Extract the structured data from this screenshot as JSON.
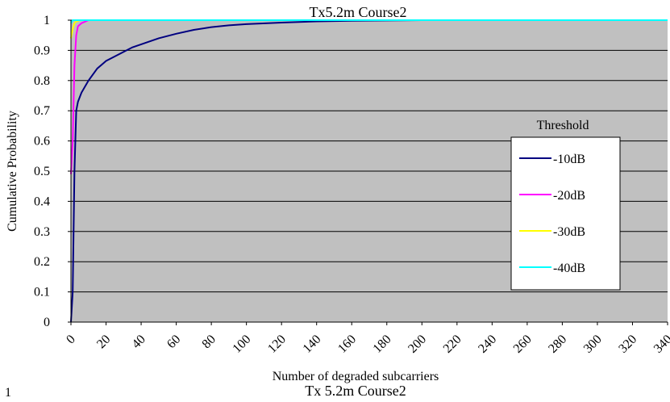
{
  "chart_data": {
    "type": "line",
    "title": "Tx5.2m Course2",
    "xlabel": "Number of degraded subcarriers",
    "ylabel": "Cumulative Probability",
    "xlim": [
      0,
      340
    ],
    "ylim": [
      0,
      1
    ],
    "x_ticks": [
      "0",
      "20",
      "40",
      "60",
      "80",
      "100",
      "120",
      "140",
      "160",
      "180",
      "200",
      "220",
      "240",
      "260",
      "280",
      "300",
      "320",
      "340"
    ],
    "y_ticks": [
      "0",
      "0.1",
      "0.2",
      "0.3",
      "0.4",
      "0.5",
      "0.6",
      "0.7",
      "0.8",
      "0.9",
      "1"
    ],
    "grid": "horizontal",
    "plot_background": "#c0c0c0",
    "legend": {
      "title": "Threshold",
      "placement": "right"
    },
    "series": [
      {
        "name": "-10dB",
        "color": "#000080",
        "x": [
          0,
          1,
          2,
          3,
          4,
          6,
          8,
          10,
          15,
          20,
          25,
          30,
          35,
          40,
          50,
          60,
          70,
          80,
          90,
          100,
          120,
          140,
          160,
          200,
          340
        ],
        "y": [
          0,
          0.1,
          0.5,
          0.7,
          0.73,
          0.76,
          0.78,
          0.8,
          0.84,
          0.865,
          0.88,
          0.895,
          0.91,
          0.92,
          0.94,
          0.955,
          0.968,
          0.977,
          0.983,
          0.987,
          0.992,
          0.996,
          0.998,
          1.0,
          1.0
        ]
      },
      {
        "name": "-20dB",
        "color": "#ff00ff",
        "x": [
          0,
          1,
          2,
          3,
          4,
          6,
          8,
          10,
          340
        ],
        "y": [
          0.49,
          0.6,
          0.85,
          0.95,
          0.98,
          0.99,
          0.995,
          1.0,
          1.0
        ]
      },
      {
        "name": "-30dB",
        "color": "#ffff00",
        "x": [
          0,
          1,
          2,
          3,
          5,
          340
        ],
        "y": [
          0.94,
          0.97,
          0.99,
          0.995,
          1.0,
          1.0
        ]
      },
      {
        "name": "-40dB",
        "color": "#00ffff",
        "x": [
          0,
          1,
          340
        ],
        "y": [
          0.99,
          1.0,
          1.0
        ]
      }
    ]
  },
  "footer": {
    "cut_title": "Tx 5.2m Course2",
    "cut_tick": "1"
  }
}
